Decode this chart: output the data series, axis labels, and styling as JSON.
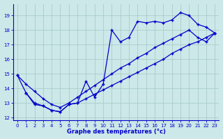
{
  "xlabel": "Graphe des températures (°c)",
  "xlim": [
    -0.5,
    23.5
  ],
  "ylim": [
    11.8,
    19.8
  ],
  "yticks": [
    12,
    13,
    14,
    15,
    16,
    17,
    18,
    19
  ],
  "xticks": [
    0,
    1,
    2,
    3,
    4,
    5,
    6,
    7,
    8,
    9,
    10,
    11,
    12,
    13,
    14,
    15,
    16,
    17,
    18,
    19,
    20,
    21,
    22,
    23
  ],
  "background_color": "#cce8e8",
  "grid_color": "#aacccc",
  "line_color": "#0000cc",
  "line1_x": [
    0,
    1,
    2,
    3,
    4,
    5,
    6,
    7,
    8,
    9,
    10,
    11,
    12,
    13,
    14,
    15,
    16,
    17,
    18,
    19,
    20,
    21,
    22,
    23
  ],
  "line1_y": [
    14.9,
    13.7,
    12.9,
    12.8,
    12.5,
    12.4,
    12.9,
    13.0,
    14.5,
    13.4,
    14.3,
    18.0,
    17.2,
    17.5,
    18.6,
    18.5,
    18.6,
    18.5,
    18.7,
    19.2,
    19.0,
    18.4,
    18.2,
    17.8
  ],
  "line2_x": [
    1,
    2,
    3,
    4,
    5,
    6,
    7,
    8,
    9,
    10,
    11,
    12,
    13,
    14,
    15,
    16,
    17,
    18,
    19,
    20,
    21,
    22,
    23
  ],
  "line2_y": [
    13.7,
    13.0,
    12.8,
    12.5,
    12.4,
    12.9,
    13.0,
    13.3,
    13.6,
    13.9,
    14.2,
    14.5,
    14.8,
    15.1,
    15.4,
    15.7,
    16.0,
    16.4,
    16.7,
    17.0,
    17.2,
    17.5,
    17.8
  ],
  "line3_x": [
    0,
    1,
    2,
    3,
    4,
    5,
    6,
    7,
    8,
    9,
    10,
    11,
    12,
    13,
    14,
    15,
    16,
    17,
    18,
    19,
    20,
    21,
    22,
    23
  ],
  "line3_y": [
    14.9,
    14.3,
    13.8,
    13.3,
    12.9,
    12.7,
    13.0,
    13.4,
    13.8,
    14.2,
    14.6,
    15.0,
    15.4,
    15.7,
    16.1,
    16.4,
    16.8,
    17.1,
    17.4,
    17.7,
    18.0,
    17.5,
    17.2,
    17.8
  ]
}
